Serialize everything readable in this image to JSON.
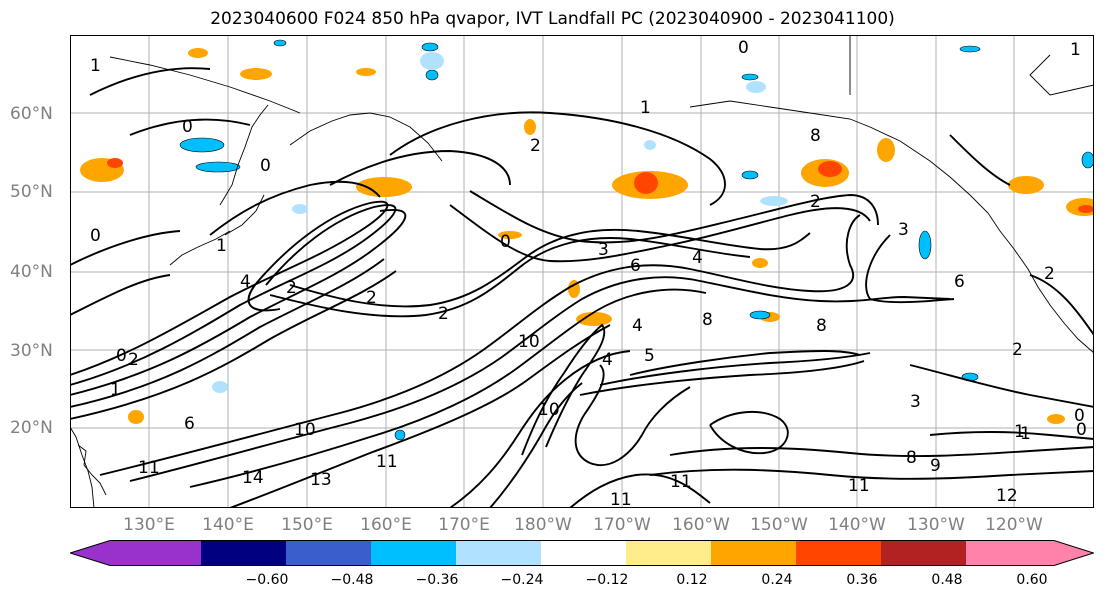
{
  "title": "2023040600 F024 850 hPa qvapor, IVT Landfall PC (2023040900 - 2023041100)",
  "map": {
    "lat_labels": [
      "60°N",
      "50°N",
      "40°N",
      "30°N",
      "20°N"
    ],
    "lon_labels": [
      "130°E",
      "140°E",
      "150°E",
      "160°E",
      "170°E",
      "180°W",
      "170°W",
      "160°W",
      "150°W",
      "140°W",
      "130°W",
      "120°W"
    ],
    "contour_labels": [
      "1",
      "0",
      "0",
      "0",
      "0",
      "2",
      "2",
      "2",
      "8",
      "3",
      "0",
      "3",
      "4",
      "6",
      "2",
      "2",
      "4",
      "8",
      "8",
      "10",
      "5",
      "4",
      "1",
      "0",
      "10",
      "10",
      "11",
      "13",
      "14",
      "11",
      "11",
      "12",
      "8",
      "9",
      "3",
      "2",
      "1",
      "0",
      "6",
      "2",
      "11",
      "0",
      "1",
      "1",
      "1",
      "2",
      "6",
      "11",
      "4",
      "1"
    ]
  },
  "colorbar": {
    "ticks": [
      "−0.60",
      "−0.48",
      "−0.36",
      "−0.24",
      "−0.12",
      "0.12",
      "0.24",
      "0.36",
      "0.48",
      "0.60"
    ],
    "colors": [
      "#9932cc",
      "#000080",
      "#3a5fcd",
      "#00bfff",
      "#b0e2ff",
      "#ffffff",
      "#ffec8b",
      "#ffa500",
      "#ff4500",
      "#b22222",
      "#ff82ab"
    ]
  }
}
